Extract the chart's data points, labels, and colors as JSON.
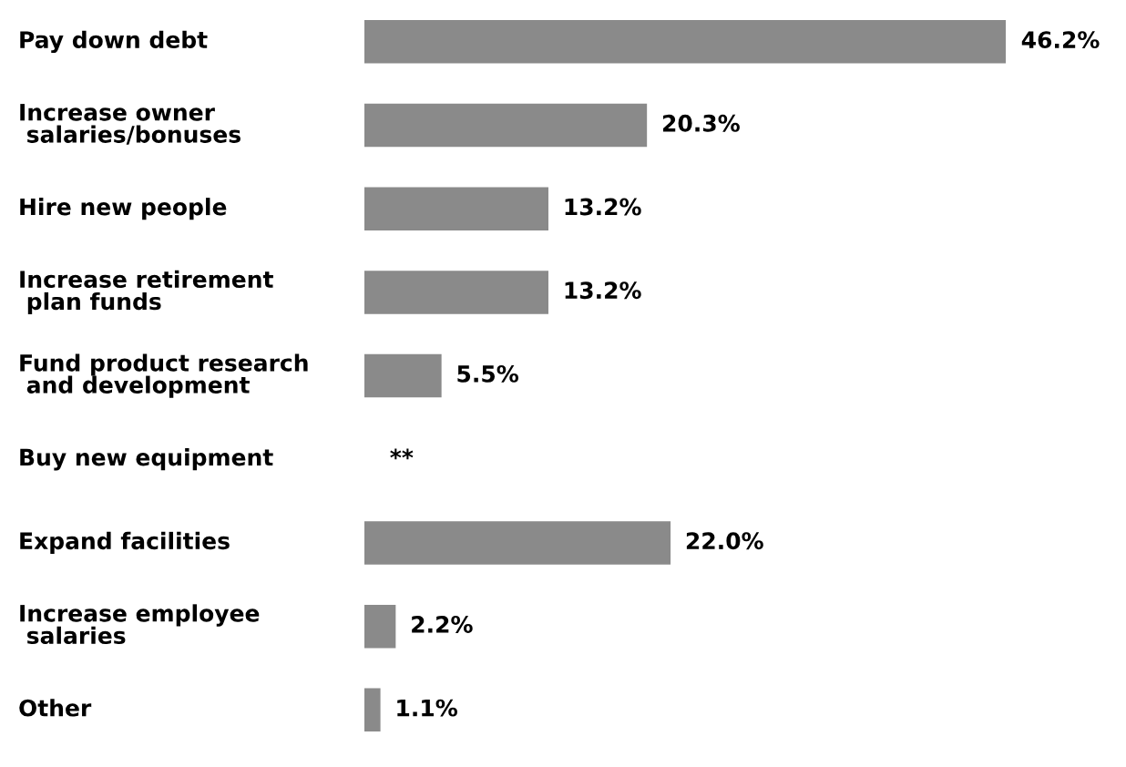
{
  "chart_data": {
    "type": "bar",
    "orientation": "horizontal",
    "categories": [
      "Pay down debt",
      "Increase owner\n salaries/bonuses",
      "Hire new people",
      "Increase retirement\n plan funds",
      "Fund product research\n and development",
      "Buy new equipment",
      "Expand facilities",
      "Increase employee\n salaries",
      "Other"
    ],
    "values": [
      46.2,
      20.3,
      13.2,
      13.2,
      5.5,
      null,
      22.0,
      2.2,
      1.1
    ],
    "value_labels": [
      "46.2%",
      "20.3%",
      "13.2%",
      "13.2%",
      "5.5%",
      "**",
      "22.0%",
      "2.2%",
      "1.1%"
    ],
    "color": "#8a8a8a"
  }
}
